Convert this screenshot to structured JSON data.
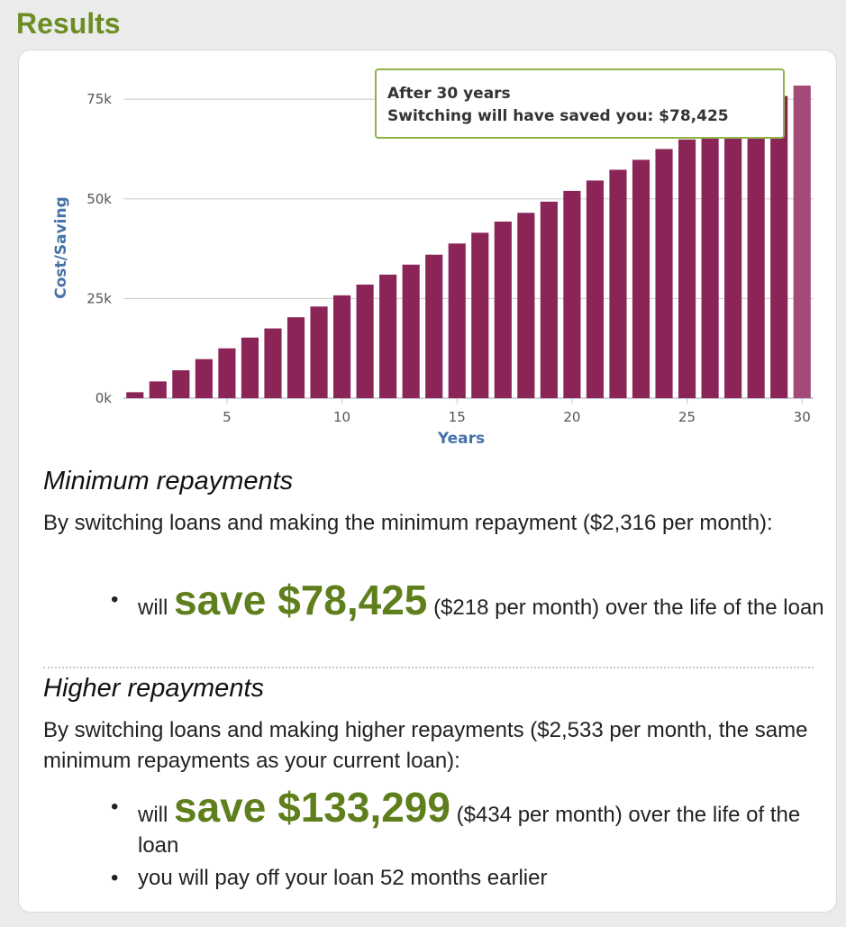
{
  "page": {
    "title": "Results"
  },
  "tooltip": {
    "line1": "After 30 years",
    "line2": "Switching will have saved you: $78,425"
  },
  "chart_data": {
    "type": "bar",
    "xlabel": "Years",
    "ylabel": "Cost/Saving",
    "x": [
      1,
      2,
      3,
      4,
      5,
      6,
      7,
      8,
      9,
      10,
      11,
      12,
      13,
      14,
      15,
      16,
      17,
      18,
      19,
      20,
      21,
      22,
      23,
      24,
      25,
      26,
      27,
      28,
      29,
      30
    ],
    "values": [
      1500,
      4200,
      7000,
      9800,
      12500,
      15200,
      17500,
      20300,
      23000,
      25800,
      28500,
      31000,
      33500,
      36000,
      38800,
      41500,
      44300,
      46500,
      49300,
      52000,
      54600,
      57300,
      59800,
      62500,
      64900,
      67600,
      70400,
      73100,
      75800,
      78425
    ],
    "ylim": [
      0,
      80000
    ],
    "yticks": [
      {
        "value": 0,
        "label": "0k"
      },
      {
        "value": 25000,
        "label": "25k"
      },
      {
        "value": 50000,
        "label": "50k"
      },
      {
        "value": 75000,
        "label": "75k"
      }
    ],
    "xticks": [
      5,
      10,
      15,
      20,
      25,
      30
    ],
    "grid": true,
    "colors": {
      "bar": "#8b2558",
      "bar_highlight": "#a34a79",
      "axis_label": "#4572a7"
    },
    "highlighted_index": 29
  },
  "minimum": {
    "heading": "Minimum repayments",
    "intro": "By switching loans and making the minimum repayment ($2,316 per month):",
    "will": "will",
    "save": "save $78,425",
    "rest": "($218 per month) over the life of the loan"
  },
  "higher": {
    "heading": "Higher repayments",
    "intro": "By switching loans and making higher repayments ($2,533 per month, the same minimum repayments as your current loan):",
    "will": "will",
    "save": "save $133,299",
    "rest": "($434 per month) over the life of the loan",
    "payoff": "you will pay off your loan 52 months earlier"
  }
}
